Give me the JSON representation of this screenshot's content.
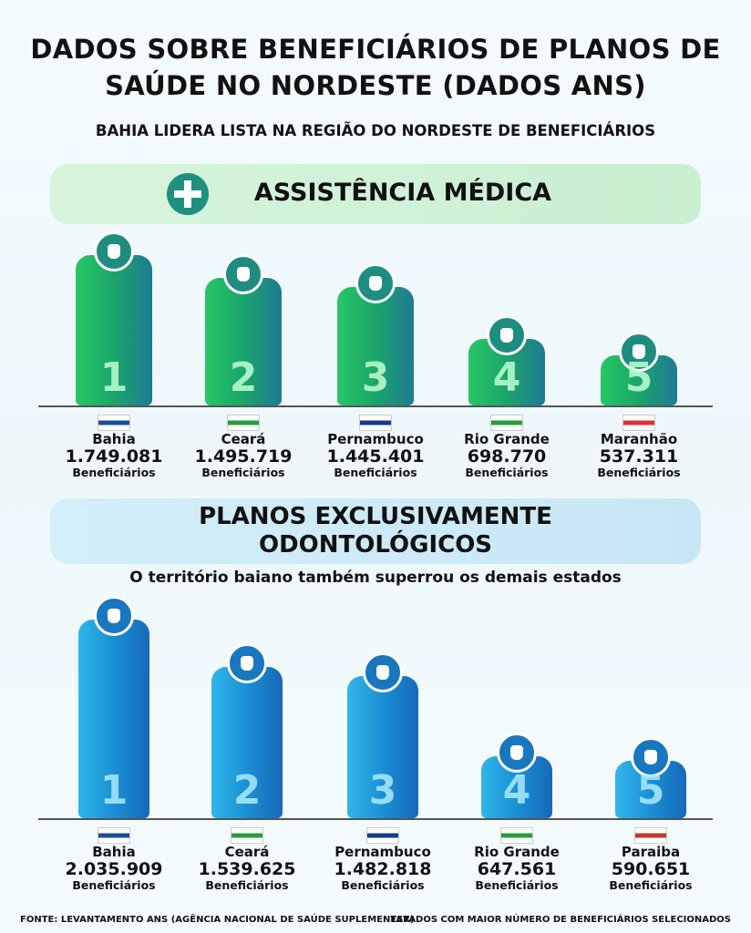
{
  "header": {
    "title": "DADOS SOBRE BENEFICIÁRIOS DE PLANOS DE SAÚDE NO NORDESTE (DADOS ANS)",
    "subtitle": "BAHIA LIDERA LISTA NA REGIÃO DO NORDESTE DE BENEFICIÁRIOS"
  },
  "sections": [
    {
      "title": "ASSISTÊNCIA MÉDICA",
      "items": [
        {
          "rank": "1",
          "state": "Bahia",
          "value": "1.749.081",
          "unit": "Beneficiários"
        },
        {
          "rank": "2",
          "state": "Ceará",
          "value": "1.495.719",
          "unit": "Beneficiários"
        },
        {
          "rank": "3",
          "state": "Pernambuco",
          "value": "1.445.401",
          "unit": "Beneficiários"
        },
        {
          "rank": "4",
          "state": "Rio Grande",
          "value": "698.770",
          "unit": "Beneficiários"
        },
        {
          "rank": "5",
          "state": "Maranhão",
          "value": "537.311",
          "unit": "Beneficiários"
        }
      ]
    },
    {
      "title": "PLANOS EXCLUSIVAMENTE ODONTOLÓGICOS",
      "note": "O território baiano também superrou os demais estados",
      "items": [
        {
          "rank": "1",
          "state": "Bahia",
          "value": "2.035.909",
          "unit": "Beneficiários"
        },
        {
          "rank": "2",
          "state": "Ceará",
          "value": "1.539.625",
          "unit": "Beneficiários"
        },
        {
          "rank": "3",
          "state": "Pernambuco",
          "value": "1.482.818",
          "unit": "Beneficiários"
        },
        {
          "rank": "4",
          "state": "Rio Grande",
          "value": "647.561",
          "unit": "Beneficiários"
        },
        {
          "rank": "5",
          "state": "Paraiba",
          "value": "590.651",
          "unit": "Beneficiários"
        }
      ]
    }
  ],
  "footer": {
    "left": "FONTE: LEVANTAMENTO ANS (AGÊNCIA NACIONAL DE SAÚDE SUPLEMENTAR)",
    "right": "ESTADOS COM MAIOR NÚMERO DE BENEFICIÁRIOS SELECIONADOS"
  }
}
